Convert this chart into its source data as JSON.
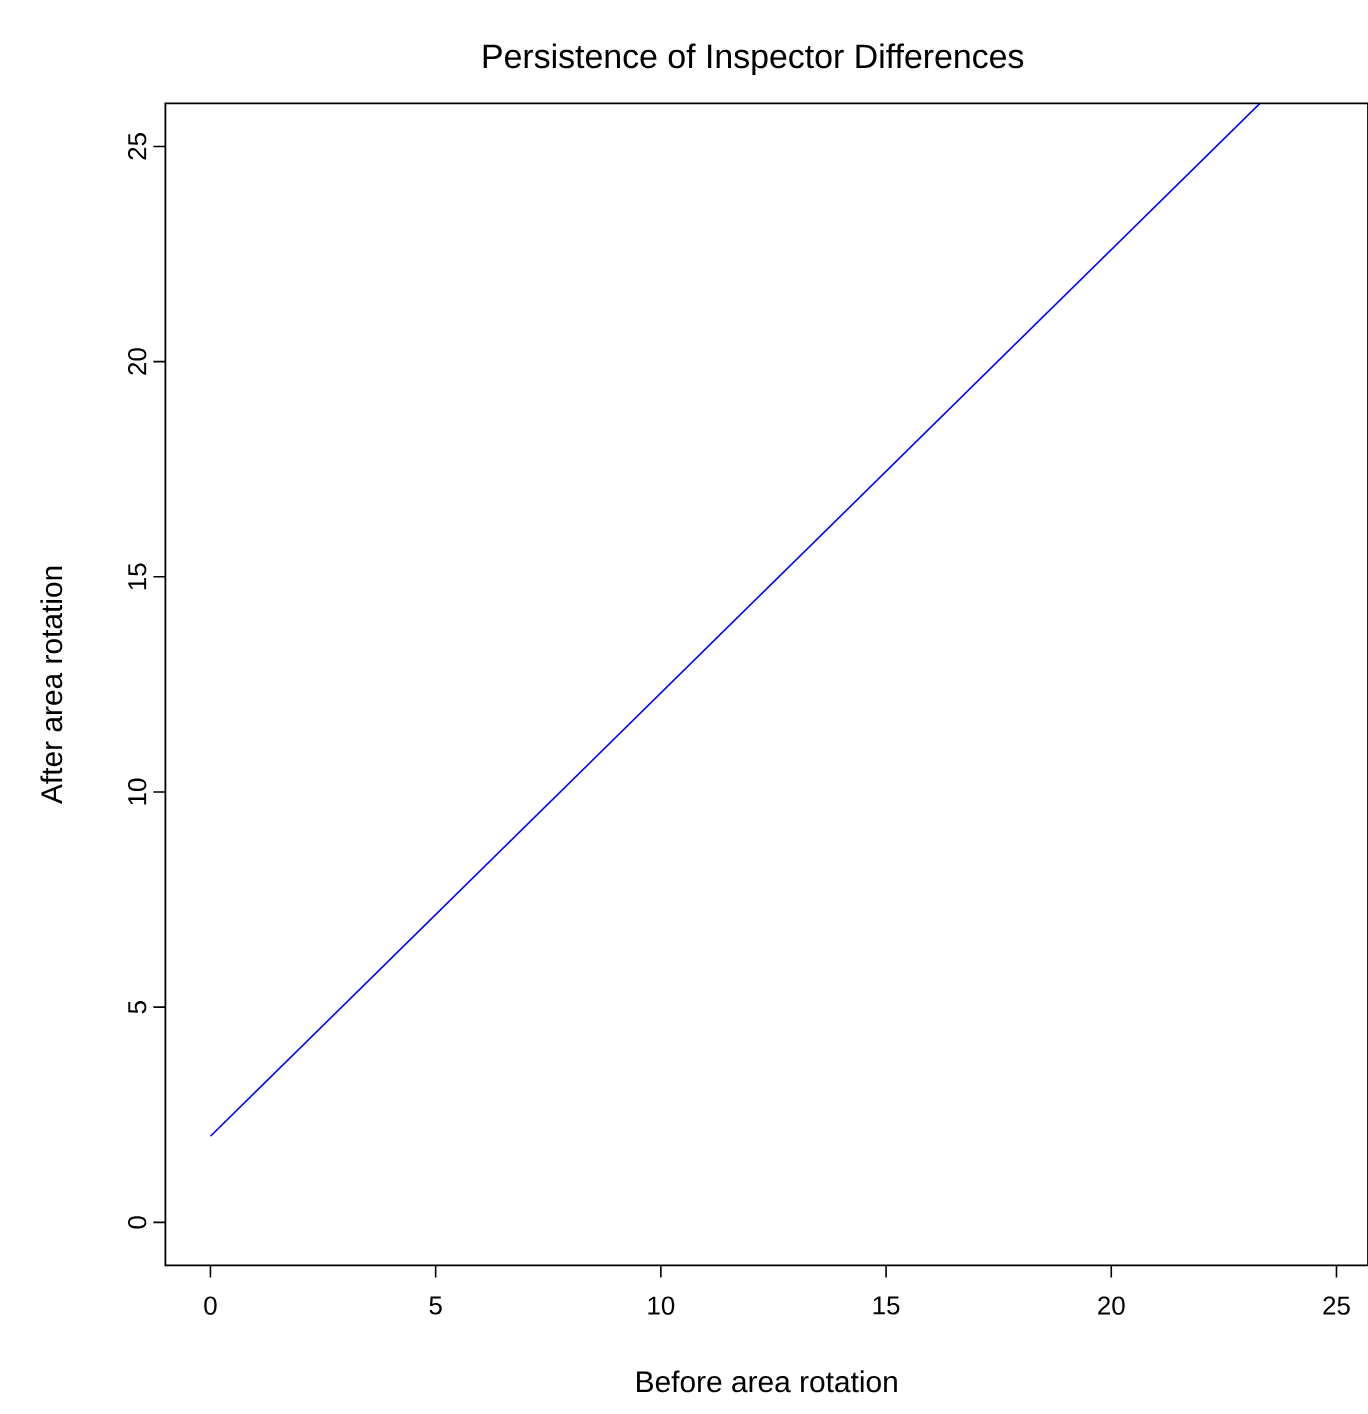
{
  "chart_data": {
    "type": "line",
    "title": "Persistence of Inspector Differences",
    "xlabel": "Before area rotation",
    "ylabel": "After area rotation",
    "x": [
      0,
      23.3
    ],
    "series": [
      {
        "color": "#0000ff",
        "values": [
          2,
          26
        ]
      }
    ],
    "xlim": [
      -1,
      25.7
    ],
    "ylim": [
      -1,
      26
    ],
    "xticks": [
      0,
      5,
      10,
      15,
      20,
      25
    ],
    "yticks": [
      0,
      5,
      10,
      15,
      20,
      25
    ]
  }
}
